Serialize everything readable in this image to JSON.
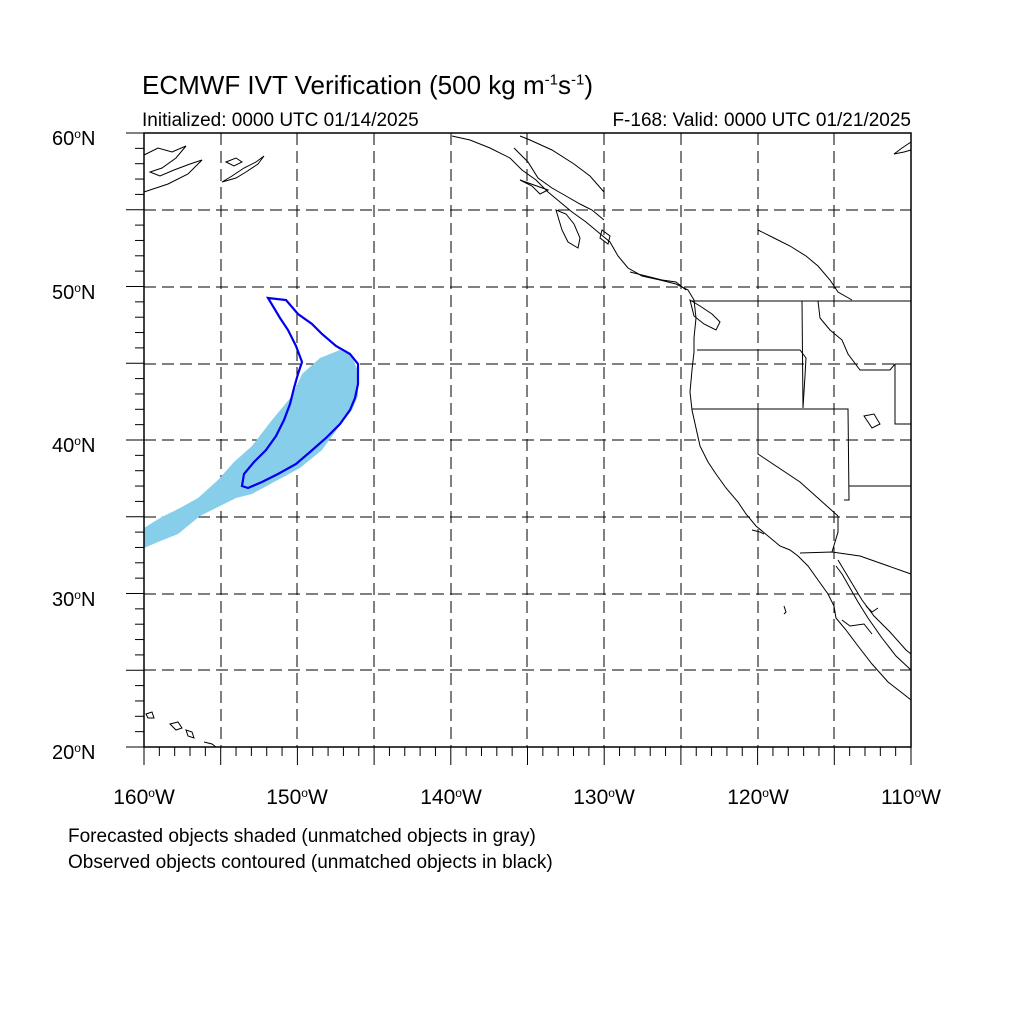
{
  "header": {
    "title_main": "ECMWF IVT Verification (500 kg m",
    "title_sup1": "-1",
    "title_mid": "s",
    "title_sup2": "-1",
    "title_end": ")",
    "initialized": "Initialized: 0000 UTC 01/14/2025",
    "valid": "F-168: Valid: 0000 UTC 01/21/2025"
  },
  "axes": {
    "lat_labels": [
      {
        "num": "60",
        "suffix": "N"
      },
      {
        "num": "50",
        "suffix": "N"
      },
      {
        "num": "40",
        "suffix": "N"
      },
      {
        "num": "30",
        "suffix": "N"
      },
      {
        "num": "20",
        "suffix": "N"
      }
    ],
    "lon_labels": [
      {
        "num": "160",
        "suffix": "W"
      },
      {
        "num": "150",
        "suffix": "W"
      },
      {
        "num": "140",
        "suffix": "W"
      },
      {
        "num": "130",
        "suffix": "W"
      },
      {
        "num": "120",
        "suffix": "W"
      },
      {
        "num": "110",
        "suffix": "W"
      }
    ],
    "lat_range": [
      20,
      60
    ],
    "lon_range": [
      -160,
      -110
    ]
  },
  "colors": {
    "forecast_fill": "#87ceeb",
    "observed_contour": "#0000ee",
    "grid": "#000000",
    "coast": "#000000"
  },
  "notes": {
    "line1": "Forecasted objects shaded (unmatched objects in gray)",
    "line2": "Observed objects contoured (unmatched objects in black)"
  }
}
